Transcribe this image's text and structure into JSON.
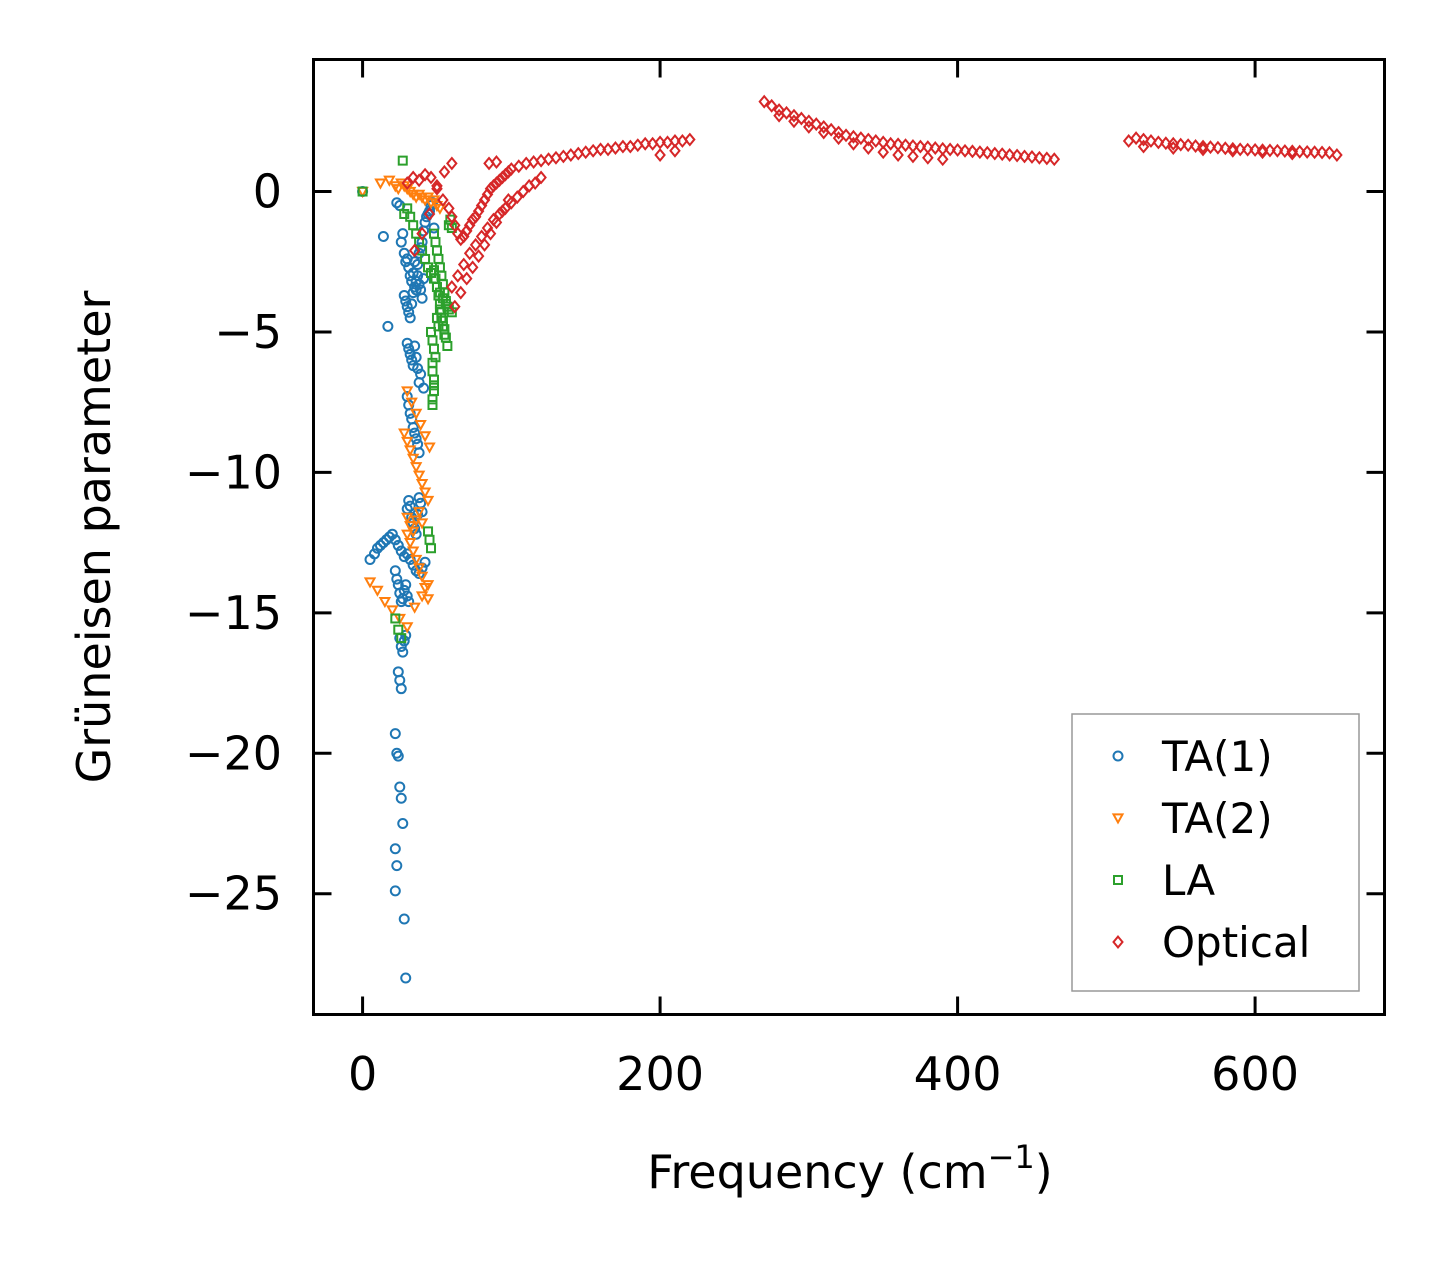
{
  "chart_data": {
    "type": "scatter",
    "title": "",
    "xlabel": "Frequency (cm",
    "xlabel_sup": "−1",
    "xlabel_suffix": ")",
    "ylabel": "Grüneisen parameter",
    "xlim": [
      -33,
      687
    ],
    "ylim": [
      -29.3,
      4.7
    ],
    "xticks": [
      0,
      200,
      400,
      600
    ],
    "xtick_labels": [
      "0",
      "200",
      "400",
      "600"
    ],
    "yticks": [
      0,
      -5,
      -10,
      -15,
      -20,
      -25
    ],
    "ytick_labels": [
      "0",
      "−5",
      "−10",
      "−15",
      "−20",
      "−25"
    ],
    "legend_position": "lower-right",
    "series": [
      {
        "name": "TA(1)",
        "marker": "circle",
        "color": "#1f77b4",
        "x": [
          0,
          14,
          17,
          23,
          25,
          26,
          27,
          28,
          29,
          30,
          31,
          32,
          33,
          34,
          35,
          36,
          37,
          38,
          39,
          40,
          41,
          42,
          43,
          44,
          45,
          46,
          47,
          48,
          5,
          8,
          10,
          12,
          14,
          16,
          18,
          20,
          22,
          24,
          26,
          28,
          30,
          32,
          34,
          36,
          38,
          40,
          42,
          22,
          23,
          24,
          25,
          26,
          27,
          28,
          29,
          30,
          31,
          25,
          26,
          27,
          28,
          29,
          24,
          25,
          26,
          22,
          23,
          24,
          25,
          26,
          27,
          22,
          23,
          22,
          28,
          29,
          30,
          31,
          32,
          33,
          34,
          35,
          36,
          37,
          38,
          39,
          40,
          41,
          30,
          31,
          32,
          33,
          34,
          35,
          36,
          37,
          38,
          30,
          31,
          32,
          33,
          34,
          35,
          36,
          37,
          38,
          39,
          28,
          29,
          30,
          31,
          32,
          33,
          34,
          35,
          36,
          37,
          38,
          39,
          40,
          41
        ],
        "y": [
          0,
          -1.6,
          -4.8,
          -0.4,
          -0.5,
          -1.8,
          -1.5,
          -2.2,
          -2.5,
          -2.4,
          -2.7,
          -3.0,
          -3.2,
          -2.9,
          -2.5,
          -3.5,
          -2.6,
          -2.2,
          -2.0,
          -1.8,
          -1.4,
          -1.1,
          -0.9,
          -0.8,
          -0.7,
          -0.5,
          -0.4,
          -1.3,
          -13.1,
          -12.9,
          -12.7,
          -12.6,
          -12.5,
          -12.4,
          -12.3,
          -12.2,
          -12.4,
          -12.6,
          -12.8,
          -13.0,
          -12.9,
          -13.1,
          -13.3,
          -13.5,
          -13.6,
          -13.4,
          -13.2,
          -13.5,
          -13.8,
          -14.0,
          -14.3,
          -14.6,
          -14.5,
          -14.2,
          -14.0,
          -14.4,
          -14.6,
          -15.9,
          -16.2,
          -16.4,
          -16.0,
          -15.8,
          -17.1,
          -17.4,
          -17.7,
          -19.3,
          -20.0,
          -20.1,
          -21.2,
          -21.6,
          -22.5,
          -23.4,
          -24.0,
          -24.9,
          -25.9,
          -28.0,
          -11.3,
          -11.0,
          -11.2,
          -11.6,
          -11.8,
          -12.0,
          -12.2,
          -11.5,
          -10.9,
          -11.1,
          -11.4,
          -7.0,
          -7.3,
          -7.6,
          -7.9,
          -8.1,
          -8.4,
          -8.6,
          -8.8,
          -9.0,
          -9.3,
          -5.4,
          -5.6,
          -5.8,
          -6.0,
          -6.2,
          -5.5,
          -5.9,
          -6.3,
          -6.8,
          -6.5,
          -3.7,
          -3.9,
          -4.1,
          -4.3,
          -4.5,
          -4.0,
          -3.6,
          -3.4,
          -3.2,
          -3.0,
          -3.3,
          -3.5,
          -3.8,
          -3.1
        ]
      },
      {
        "name": "TA(2)",
        "marker": "triangle-down",
        "color": "#ff7f0e",
        "x": [
          0,
          12,
          18,
          22,
          24,
          26,
          28,
          30,
          32,
          34,
          36,
          38,
          40,
          42,
          44,
          46,
          48,
          50,
          52,
          5,
          10,
          15,
          20,
          25,
          30,
          35,
          40,
          44,
          30,
          32,
          34,
          36,
          38,
          40,
          42,
          44,
          28,
          30,
          32,
          34,
          36,
          38,
          40,
          42,
          44,
          30,
          33,
          36,
          39,
          42,
          45,
          30,
          32,
          34,
          36,
          38,
          40
        ],
        "y": [
          0,
          0.3,
          0.4,
          0.2,
          0.1,
          0.3,
          0.2,
          0.1,
          0.0,
          -0.1,
          -0.2,
          -0.1,
          -0.2,
          -0.3,
          -0.2,
          -0.4,
          -0.3,
          -0.5,
          -0.6,
          -13.9,
          -14.2,
          -14.6,
          -14.9,
          -15.2,
          -15.5,
          -14.8,
          -14.4,
          -14.0,
          -12.2,
          -12.5,
          -12.8,
          -13.1,
          -13.4,
          -13.7,
          -14.1,
          -14.5,
          -8.6,
          -8.9,
          -9.2,
          -9.5,
          -9.8,
          -10.1,
          -10.4,
          -10.7,
          -11.0,
          -7.1,
          -7.5,
          -7.9,
          -8.3,
          -8.7,
          -9.1,
          -11.6,
          -11.9,
          -12.1,
          -11.7,
          -11.4,
          -11.8
        ]
      },
      {
        "name": "LA",
        "marker": "square",
        "color": "#2ca02c",
        "x": [
          0,
          27,
          28,
          30,
          32,
          34,
          36,
          38,
          40,
          42,
          44,
          46,
          48,
          50,
          52,
          54,
          56,
          58,
          60,
          48,
          49,
          50,
          51,
          52,
          53,
          54,
          55,
          56,
          57,
          58,
          59,
          60,
          48,
          49,
          50,
          51,
          52,
          53,
          54,
          55,
          56,
          57,
          46,
          47,
          48,
          49,
          50,
          51,
          52,
          53,
          54,
          55,
          47,
          47,
          48,
          48,
          47,
          47,
          48,
          22,
          24,
          26,
          44,
          45,
          46
        ],
        "y": [
          0,
          1.1,
          -0.8,
          -0.6,
          -0.9,
          -1.2,
          -1.5,
          -1.8,
          -2.1,
          -2.4,
          -2.7,
          -2.9,
          -3.1,
          -3.4,
          -3.6,
          -3.8,
          -4.0,
          -4.2,
          -4.3,
          -1.5,
          -1.8,
          -2.1,
          -2.4,
          -2.7,
          -3.0,
          -3.3,
          -3.6,
          -3.9,
          -4.1,
          -1.2,
          -1.0,
          -1.3,
          -2.8,
          -3.1,
          -3.4,
          -3.7,
          -4.0,
          -4.3,
          -4.6,
          -4.9,
          -5.2,
          -5.5,
          -5.0,
          -5.3,
          -5.6,
          -5.9,
          -4.5,
          -4.8,
          -4.2,
          -4.5,
          -4.8,
          -5.1,
          -6.1,
          -6.4,
          -6.9,
          -7.1,
          -7.4,
          -7.6,
          -6.7,
          -15.2,
          -15.6,
          -15.9,
          -12.1,
          -12.4,
          -12.7
        ]
      },
      {
        "name": "Optical",
        "marker": "diamond",
        "color": "#d62728",
        "x": [
          30,
          34,
          38,
          42,
          46,
          50,
          54,
          58,
          60,
          62,
          64,
          66,
          68,
          70,
          72,
          74,
          76,
          78,
          80,
          82,
          84,
          86,
          88,
          90,
          92,
          94,
          96,
          98,
          100,
          105,
          110,
          115,
          120,
          125,
          130,
          135,
          140,
          145,
          150,
          155,
          160,
          165,
          170,
          175,
          180,
          185,
          190,
          195,
          200,
          205,
          210,
          215,
          220,
          60,
          64,
          68,
          72,
          76,
          80,
          84,
          88,
          92,
          96,
          100,
          104,
          108,
          112,
          116,
          120,
          62,
          66,
          70,
          74,
          78,
          82,
          86,
          90,
          94,
          98,
          35,
          40,
          45,
          50,
          55,
          60,
          85,
          90,
          200,
          210,
          270,
          275,
          280,
          285,
          290,
          295,
          300,
          305,
          310,
          315,
          320,
          325,
          330,
          335,
          340,
          345,
          350,
          355,
          360,
          365,
          370,
          375,
          380,
          385,
          390,
          395,
          400,
          405,
          410,
          415,
          420,
          425,
          430,
          435,
          440,
          445,
          450,
          455,
          460,
          465,
          280,
          290,
          300,
          310,
          320,
          330,
          340,
          350,
          360,
          370,
          380,
          390,
          515,
          520,
          525,
          530,
          535,
          540,
          545,
          550,
          555,
          560,
          565,
          570,
          575,
          580,
          585,
          590,
          595,
          600,
          605,
          610,
          615,
          620,
          625,
          630,
          635,
          640,
          645,
          650,
          655,
          525,
          545,
          565,
          585,
          605,
          625
        ],
        "y": [
          0.3,
          0.5,
          0.4,
          0.6,
          0.5,
          0.2,
          -0.3,
          -0.6,
          -0.9,
          -1.2,
          -1.5,
          -1.7,
          -1.6,
          -1.4,
          -1.2,
          -1.0,
          -0.9,
          -0.7,
          -0.5,
          -0.3,
          -0.1,
          0.1,
          0.2,
          0.3,
          0.4,
          0.5,
          0.6,
          0.7,
          0.8,
          0.9,
          1.0,
          1.05,
          1.1,
          1.15,
          1.2,
          1.25,
          1.3,
          1.35,
          1.4,
          1.45,
          1.5,
          1.5,
          1.55,
          1.6,
          1.6,
          1.65,
          1.7,
          1.7,
          1.75,
          1.75,
          1.8,
          1.8,
          1.85,
          -3.4,
          -3.0,
          -2.6,
          -2.2,
          -1.9,
          -1.6,
          -1.3,
          -1.0,
          -0.8,
          -0.6,
          -0.4,
          -0.2,
          0.0,
          0.2,
          0.3,
          0.5,
          -4.1,
          -3.6,
          -3.1,
          -2.7,
          -2.3,
          -1.9,
          -1.5,
          -1.1,
          -0.7,
          -0.3,
          -2.1,
          -1.5,
          -0.8,
          0.1,
          0.7,
          1.0,
          1.0,
          1.05,
          1.3,
          1.45,
          3.2,
          3.05,
          2.9,
          2.8,
          2.7,
          2.6,
          2.5,
          2.4,
          2.3,
          2.2,
          2.1,
          2.0,
          1.95,
          1.9,
          1.85,
          1.8,
          1.75,
          1.7,
          1.68,
          1.65,
          1.62,
          1.6,
          1.58,
          1.55,
          1.52,
          1.5,
          1.48,
          1.45,
          1.43,
          1.4,
          1.38,
          1.35,
          1.33,
          1.3,
          1.28,
          1.25,
          1.23,
          1.2,
          1.18,
          1.15,
          2.7,
          2.5,
          2.3,
          2.1,
          1.9,
          1.7,
          1.55,
          1.4,
          1.3,
          1.25,
          1.2,
          1.15,
          1.8,
          1.9,
          1.85,
          1.8,
          1.75,
          1.72,
          1.7,
          1.67,
          1.65,
          1.62,
          1.6,
          1.58,
          1.56,
          1.54,
          1.52,
          1.5,
          1.49,
          1.48,
          1.47,
          1.46,
          1.45,
          1.44,
          1.43,
          1.42,
          1.41,
          1.4,
          1.39,
          1.38,
          1.3,
          1.6,
          1.55,
          1.5,
          1.45,
          1.4,
          1.35
        ]
      }
    ]
  }
}
